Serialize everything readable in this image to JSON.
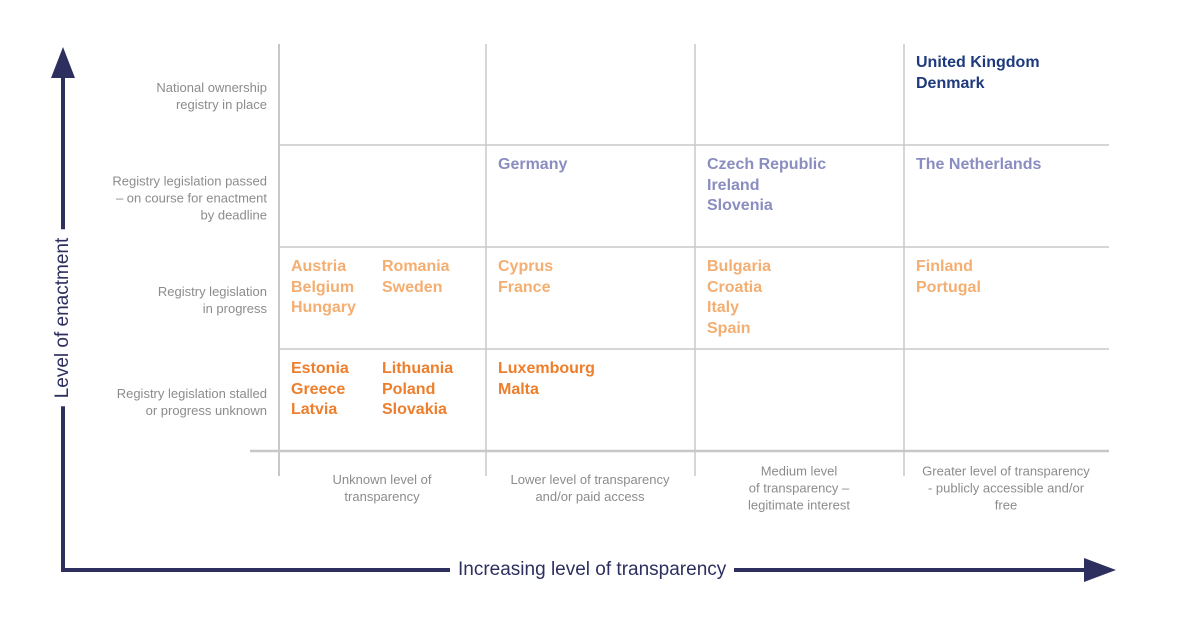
{
  "y_axis_title": "Level of enactment",
  "x_axis_title": "Increasing level of transparency",
  "colors": {
    "axis": "#2d2f5f",
    "grid": "#c8c8c8",
    "label": "#8c8c8c",
    "in_place": "#1e3a7c",
    "passed": "#8a8dc0",
    "in_progress": "#f4ae71",
    "stalled": "#ee7e2b"
  },
  "rows": [
    {
      "label": "National ownership\nregistry in place",
      "color": "in_place"
    },
    {
      "label": "Registry legislation passed\n– on course for enactment\nby deadline",
      "color": "passed"
    },
    {
      "label": "Registry legislation\nin progress",
      "color": "in_progress"
    },
    {
      "label": "Registry legislation stalled\nor progress unknown",
      "color": "stalled"
    }
  ],
  "columns": [
    {
      "label": "Unknown level of\ntransparency"
    },
    {
      "label": "Lower level of transparency\nand/or paid access"
    },
    {
      "label": "Medium level\nof transparency –\nlegitimate interest"
    },
    {
      "label": "Greater level of transparency\n- publicly accessible and/or\nfree"
    }
  ],
  "cells": [
    [
      [],
      [],
      [],
      [
        [
          "United Kingdom",
          "Denmark"
        ]
      ]
    ],
    [
      [],
      [
        [
          "Germany"
        ]
      ],
      [
        [
          "Czech Republic",
          "Ireland",
          "Slovenia"
        ]
      ],
      [
        [
          "The Netherlands"
        ]
      ]
    ],
    [
      [
        [
          "Austria",
          "Belgium",
          "Hungary"
        ],
        [
          "Romania",
          "Sweden"
        ]
      ],
      [
        [
          "Cyprus",
          "France"
        ]
      ],
      [
        [
          "Bulgaria",
          "Croatia",
          "Italy",
          "Spain"
        ]
      ],
      [
        [
          "Finland",
          "Portugal"
        ]
      ]
    ],
    [
      [
        [
          "Estonia",
          "Greece",
          "Latvia"
        ],
        [
          "Lithuania",
          "Poland",
          "Slovakia"
        ]
      ],
      [
        [
          "Luxembourg",
          "Malta"
        ]
      ],
      [],
      []
    ]
  ]
}
